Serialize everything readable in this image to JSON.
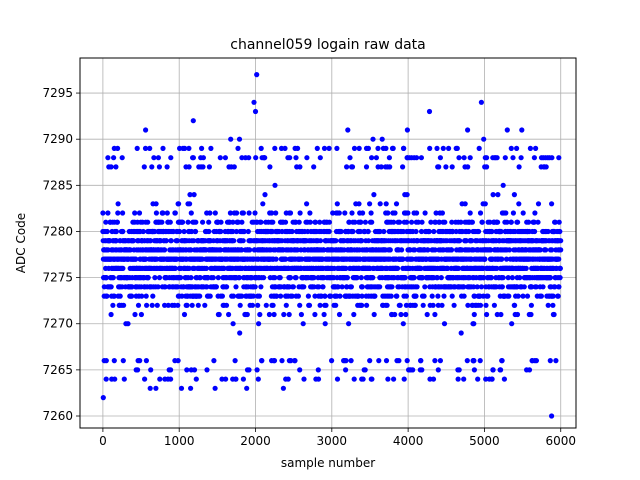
{
  "chart_data": {
    "type": "scatter",
    "title": "channel059 logain raw data",
    "xlabel": "sample number",
    "ylabel": "ADC Code",
    "xlim": [
      -300,
      6200
    ],
    "ylim": [
      7258.7,
      7298.8
    ],
    "xticks": [
      0,
      1000,
      2000,
      3000,
      4000,
      5000,
      6000
    ],
    "yticks": [
      7260,
      7265,
      7270,
      7275,
      7280,
      7285,
      7290,
      7295
    ],
    "grid": true,
    "marker_color": "#0000ff",
    "marker": "filled-circle",
    "n_samples": 6000,
    "x_step": 1,
    "band": {
      "dense_min": 7267,
      "dense_max": 7286,
      "center": 7277
    },
    "series": [
      {
        "name": "",
        "notable_points": [
          {
            "x": 5,
            "y": 7262
          },
          {
            "x": 2015,
            "y": 7297
          },
          {
            "x": 1980,
            "y": 7294
          },
          {
            "x": 4960,
            "y": 7294
          },
          {
            "x": 4280,
            "y": 7293
          },
          {
            "x": 1185,
            "y": 7292
          },
          {
            "x": 2000,
            "y": 7293
          },
          {
            "x": 560,
            "y": 7291
          },
          {
            "x": 3210,
            "y": 7291
          },
          {
            "x": 4780,
            "y": 7291
          },
          {
            "x": 5300,
            "y": 7291
          },
          {
            "x": 5490,
            "y": 7291
          },
          {
            "x": 1675,
            "y": 7290
          },
          {
            "x": 1790,
            "y": 7290
          },
          {
            "x": 3540,
            "y": 7290
          },
          {
            "x": 3660,
            "y": 7290
          },
          {
            "x": 3990,
            "y": 7291
          },
          {
            "x": 4990,
            "y": 7290
          },
          {
            "x": 1005,
            "y": 7289
          },
          {
            "x": 1050,
            "y": 7289
          },
          {
            "x": 2810,
            "y": 7289
          },
          {
            "x": 3940,
            "y": 7289
          },
          {
            "x": 5800,
            "y": 7288
          },
          {
            "x": 620,
            "y": 7263
          },
          {
            "x": 695,
            "y": 7263
          },
          {
            "x": 1030,
            "y": 7263
          },
          {
            "x": 1150,
            "y": 7263
          },
          {
            "x": 1470,
            "y": 7263
          },
          {
            "x": 1885,
            "y": 7263
          },
          {
            "x": 2365,
            "y": 7263
          },
          {
            "x": 155,
            "y": 7264
          },
          {
            "x": 3410,
            "y": 7264
          },
          {
            "x": 3810,
            "y": 7264
          },
          {
            "x": 5100,
            "y": 7264
          },
          {
            "x": 5880,
            "y": 7260
          }
        ]
      }
    ]
  }
}
